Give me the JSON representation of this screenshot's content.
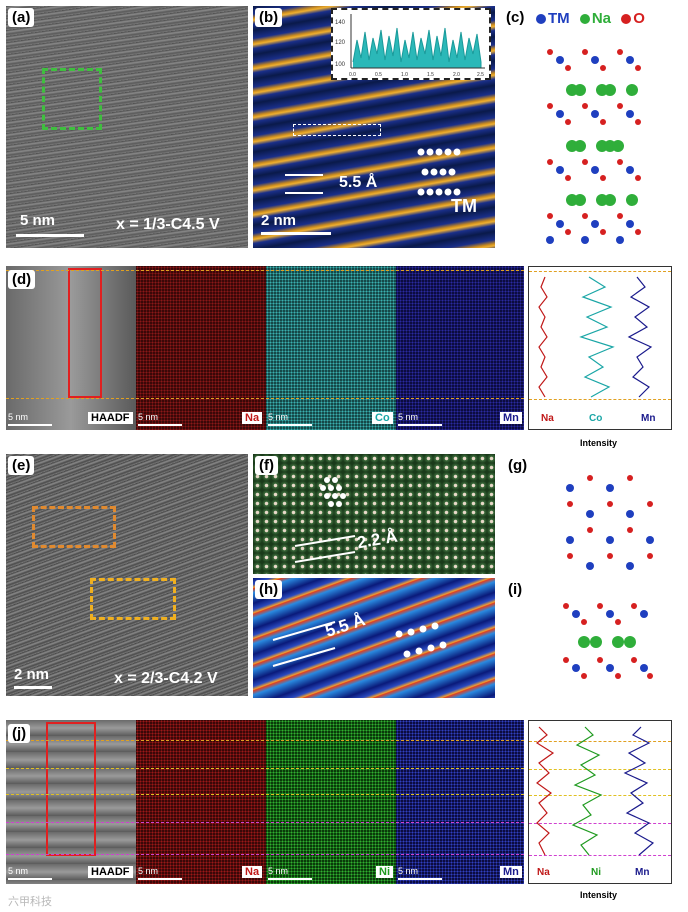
{
  "panels": {
    "a": {
      "label": "(a)",
      "scale": "5 nm",
      "condition": "x = 1/3-C4.5 V"
    },
    "b": {
      "label": "(b)",
      "scale": "2 nm",
      "spacing": "5.5 Å",
      "tm": "TM",
      "inset_y_ticks": [
        "140",
        "120",
        "100"
      ],
      "inset_x_ticks": [
        "0.0",
        "0.5",
        "1.0",
        "1.5",
        "2.0",
        "2.5"
      ]
    },
    "c": {
      "label": "(c)",
      "legend": [
        {
          "name": "TM",
          "color": "#1f3fbf"
        },
        {
          "name": "Na",
          "color": "#2fae3a"
        },
        {
          "name": "O",
          "color": "#d62020"
        }
      ]
    },
    "d": {
      "label": "(d)",
      "maps": [
        {
          "scale": "5 nm",
          "tag": "HAADF",
          "tag_color": "#000000"
        },
        {
          "scale": "5 nm",
          "tag": "Na",
          "tag_color": "#c01818"
        },
        {
          "scale": "5 nm",
          "tag": "Co",
          "tag_color": "#1aa6a6"
        },
        {
          "scale": "5 nm",
          "tag": "Mn",
          "tag_color": "#1a1a8c"
        }
      ],
      "profile_labels": [
        {
          "text": "Na",
          "color": "#c01818"
        },
        {
          "text": "Co",
          "color": "#1aa6a6"
        },
        {
          "text": "Mn",
          "color": "#1a1a8c"
        }
      ],
      "intensity": "Intensity"
    },
    "e": {
      "label": "(e)",
      "scale": "2 nm",
      "condition": "x = 2/3-C4.2 V"
    },
    "f": {
      "label": "(f)",
      "spacing": "2.2 Å"
    },
    "g": {
      "label": "(g)"
    },
    "h": {
      "label": "(h)",
      "spacing": "5.5 Å"
    },
    "i": {
      "label": "(i)"
    },
    "j": {
      "label": "(j)",
      "maps": [
        {
          "scale": "5 nm",
          "tag": "HAADF",
          "tag_color": "#000000"
        },
        {
          "scale": "5 nm",
          "tag": "Na",
          "tag_color": "#c01818"
        },
        {
          "scale": "5 nm",
          "tag": "Ni",
          "tag_color": "#1f9a1f"
        },
        {
          "scale": "5 nm",
          "tag": "Mn",
          "tag_color": "#1a1a8c"
        }
      ],
      "profile_labels": [
        {
          "text": "Na",
          "color": "#c01818"
        },
        {
          "text": "Ni",
          "color": "#1f9a1f"
        },
        {
          "text": "Mn",
          "color": "#1a1a8c"
        }
      ],
      "intensity": "Intensity"
    }
  },
  "watermark": "六甲科技"
}
